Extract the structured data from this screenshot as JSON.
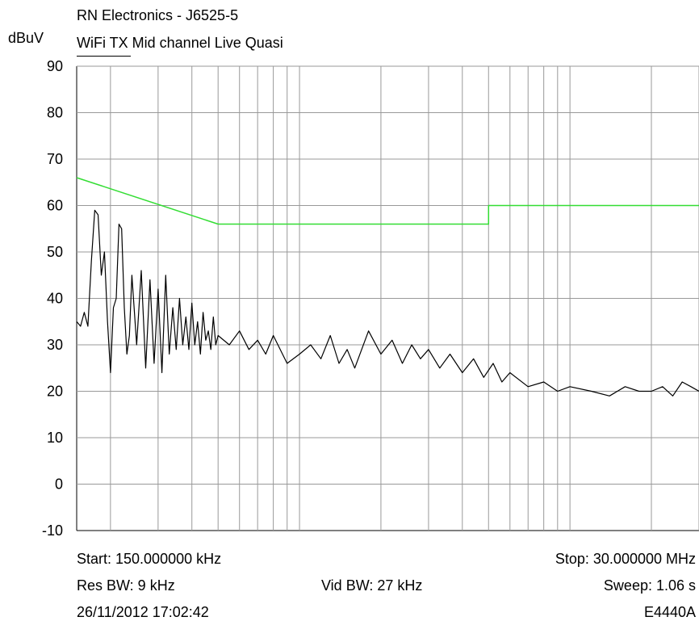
{
  "header": {
    "title": "RN Electronics - J6525-5",
    "subtitle": "WiFi TX Mid channel Live Quasi"
  },
  "footer": {
    "start": "Start: 150.000000 kHz",
    "stop": "Stop: 30.000000 MHz",
    "res_bw": "Res BW: 9 kHz",
    "vid_bw": "Vid BW: 27 kHz",
    "sweep": "Sweep: 1.06 s",
    "timestamp": "26/11/2012 17:02:42",
    "instrument": "E4440A"
  },
  "colors": {
    "limit": "#33dd33",
    "trace": "#000000",
    "grid": "#999999"
  },
  "chart_data": {
    "type": "line",
    "title": "RN Electronics - J6525-5",
    "subtitle": "WiFi TX Mid channel Live Quasi",
    "ylabel": "dBuV",
    "ylim": [
      -10,
      90
    ],
    "yticks": [
      90,
      80,
      70,
      60,
      50,
      40,
      30,
      20,
      10,
      0,
      -10
    ],
    "x_scale": "log",
    "xlim_mhz": [
      0.15,
      30
    ],
    "grid": true,
    "series": [
      {
        "color": "#33dd33",
        "x_mhz": [
          0.15,
          0.5,
          0.5,
          5,
          5,
          30
        ],
        "y": [
          66,
          56,
          56,
          56,
          60,
          60
        ]
      },
      {
        "color": "#000000",
        "x_mhz": [
          0.15,
          0.155,
          0.16,
          0.165,
          0.17,
          0.175,
          0.18,
          0.185,
          0.19,
          0.195,
          0.2,
          0.205,
          0.21,
          0.215,
          0.22,
          0.225,
          0.23,
          0.235,
          0.24,
          0.25,
          0.26,
          0.27,
          0.28,
          0.29,
          0.3,
          0.31,
          0.32,
          0.33,
          0.34,
          0.35,
          0.36,
          0.37,
          0.38,
          0.39,
          0.4,
          0.41,
          0.42,
          0.43,
          0.44,
          0.45,
          0.46,
          0.47,
          0.48,
          0.49,
          0.5,
          0.55,
          0.6,
          0.65,
          0.7,
          0.75,
          0.8,
          0.9,
          1.0,
          1.1,
          1.2,
          1.3,
          1.4,
          1.5,
          1.6,
          1.8,
          2.0,
          2.2,
          2.4,
          2.6,
          2.8,
          3.0,
          3.3,
          3.6,
          4.0,
          4.4,
          4.8,
          5.2,
          5.6,
          6.0,
          7.0,
          8.0,
          9.0,
          10.0,
          12.0,
          14.0,
          16.0,
          18.0,
          20.0,
          22.0,
          24.0,
          26.0,
          28.0,
          30.0
        ],
        "y": [
          35,
          34,
          37,
          34,
          48,
          59,
          58,
          45,
          50,
          35,
          24,
          38,
          40,
          56,
          55,
          38,
          28,
          32,
          45,
          30,
          46,
          25,
          44,
          26,
          42,
          24,
          45,
          28,
          38,
          29,
          40,
          30,
          36,
          29,
          39,
          30,
          35,
          28,
          37,
          31,
          33,
          29,
          36,
          30,
          32,
          30,
          33,
          29,
          31,
          28,
          32,
          26,
          28,
          30,
          27,
          32,
          26,
          29,
          25,
          33,
          28,
          31,
          26,
          30,
          27,
          29,
          25,
          28,
          24,
          27,
          23,
          26,
          22,
          24,
          21,
          22,
          20,
          21,
          20,
          19,
          21,
          20,
          20,
          21,
          19,
          22,
          21,
          20
        ]
      }
    ]
  }
}
